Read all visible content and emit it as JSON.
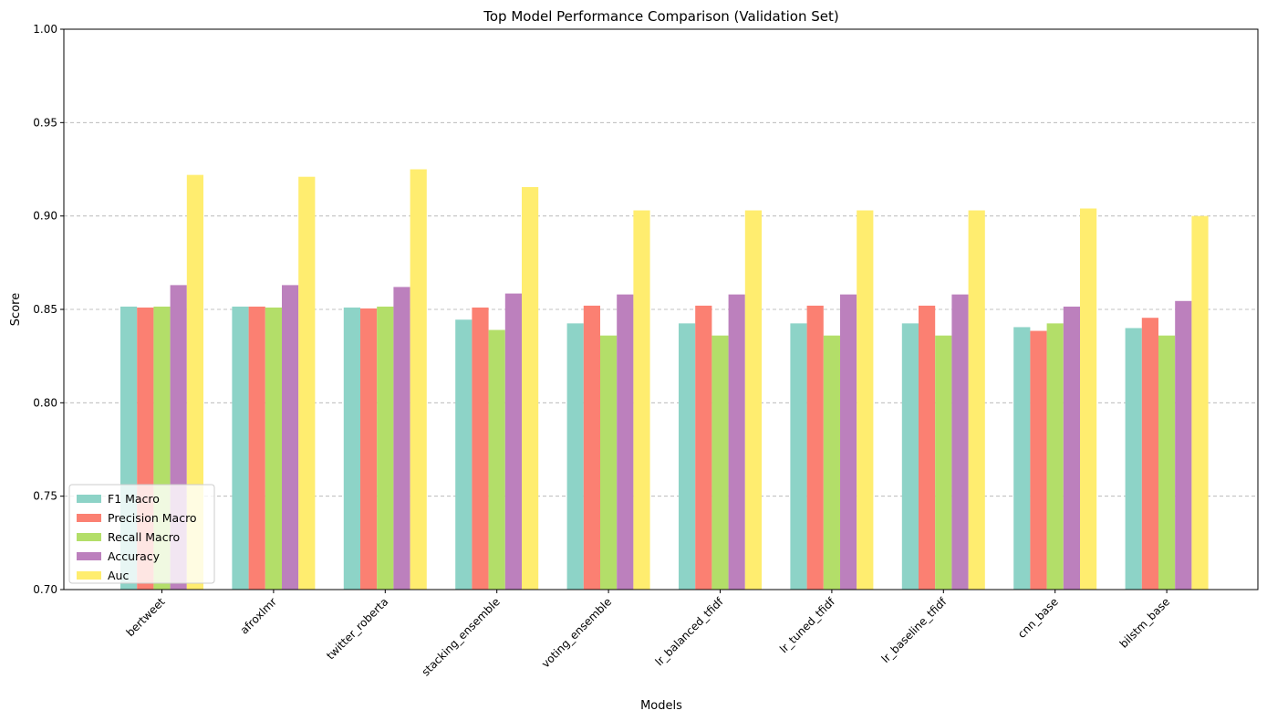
{
  "chart_data": {
    "type": "bar",
    "title": "Top Model Performance Comparison (Validation Set)",
    "xlabel": "Models",
    "ylabel": "Score",
    "ylim": [
      0.7,
      1.0
    ],
    "yticks": [
      "0.70",
      "0.75",
      "0.80",
      "0.85",
      "0.90",
      "0.95",
      "1.00"
    ],
    "grid": "y-dashed",
    "legend_position": "lower-left",
    "categories": [
      "bertweet",
      "afroxlmr",
      "twitter_roberta",
      "stacking_ensemble",
      "voting_ensemble",
      "lr_balanced_tfidf",
      "lr_tuned_tfidf",
      "lr_baseline_tfidf",
      "cnn_base",
      "bilstm_base"
    ],
    "series": [
      {
        "name": "F1 Macro",
        "color": "#8dd3c7",
        "values": [
          0.8515,
          0.8515,
          0.851,
          0.8445,
          0.8425,
          0.8425,
          0.8425,
          0.8425,
          0.8405,
          0.84
        ]
      },
      {
        "name": "Precision Macro",
        "color": "#fb8072",
        "values": [
          0.851,
          0.8515,
          0.8505,
          0.851,
          0.852,
          0.852,
          0.852,
          0.852,
          0.8385,
          0.8455
        ]
      },
      {
        "name": "Recall Macro",
        "color": "#b3de69",
        "values": [
          0.8515,
          0.851,
          0.8515,
          0.839,
          0.836,
          0.836,
          0.836,
          0.836,
          0.8425,
          0.836
        ]
      },
      {
        "name": "Accuracy",
        "color": "#bc80bd",
        "values": [
          0.863,
          0.863,
          0.862,
          0.8585,
          0.858,
          0.858,
          0.858,
          0.858,
          0.8515,
          0.8545
        ]
      },
      {
        "name": "Auc",
        "color": "#ffed6f",
        "values": [
          0.922,
          0.921,
          0.925,
          0.9155,
          0.903,
          0.903,
          0.903,
          0.903,
          0.904,
          0.9
        ]
      }
    ]
  }
}
